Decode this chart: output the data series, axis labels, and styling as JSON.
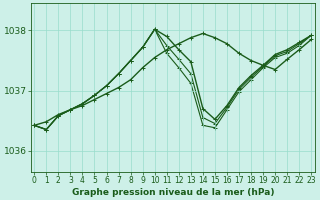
{
  "title": "Graphe pression niveau de la mer (hPa)",
  "background_color": "#cdf0e8",
  "plot_bg_color": "#cdf0e8",
  "grid_color": "#99ddcc",
  "line_color": "#1a5c1a",
  "x_ticks": [
    0,
    1,
    2,
    3,
    4,
    5,
    6,
    7,
    8,
    9,
    10,
    11,
    12,
    13,
    14,
    15,
    16,
    17,
    18,
    19,
    20,
    21,
    22,
    23
  ],
  "y_ticks": [
    1036,
    1037,
    1038
  ],
  "ylim": [
    1035.65,
    1038.45
  ],
  "xlim": [
    -0.3,
    23.3
  ],
  "series": [
    [
      1036.42,
      1036.48,
      1036.6,
      1036.68,
      1036.75,
      1036.85,
      1036.95,
      1037.05,
      1037.18,
      1037.38,
      1037.55,
      1037.68,
      1037.78,
      1037.88,
      1037.95,
      1037.88,
      1037.78,
      1037.62,
      1037.5,
      1037.42,
      1037.35,
      1037.52,
      1037.68,
      1037.85
    ],
    [
      1036.42,
      1036.35,
      1036.58,
      1036.68,
      1036.78,
      1036.92,
      1037.08,
      1037.28,
      1037.5,
      1037.72,
      1038.02,
      1037.9,
      1037.68,
      1037.48,
      1036.7,
      1036.52,
      1036.75,
      1037.05,
      1037.25,
      1037.42,
      1037.6,
      1037.68,
      1037.8,
      1037.92
    ],
    [
      1036.42,
      1036.35,
      1036.58,
      1036.68,
      1036.78,
      1036.92,
      1037.08,
      1037.28,
      1037.5,
      1037.72,
      1038.02,
      1037.75,
      1037.52,
      1037.28,
      1036.55,
      1036.45,
      1036.72,
      1037.02,
      1037.22,
      1037.4,
      1037.58,
      1037.65,
      1037.78,
      1037.92
    ],
    [
      1036.42,
      1036.35,
      1036.58,
      1036.68,
      1036.78,
      1036.92,
      1037.08,
      1037.28,
      1037.5,
      1037.72,
      1038.02,
      1037.62,
      1037.38,
      1037.12,
      1036.42,
      1036.38,
      1036.68,
      1036.98,
      1037.18,
      1037.38,
      1037.55,
      1037.62,
      1037.75,
      1037.92
    ]
  ],
  "tick_fontsize": 5.5,
  "xlabel_fontsize": 6.5,
  "ylabel_fontsize": 6.5
}
